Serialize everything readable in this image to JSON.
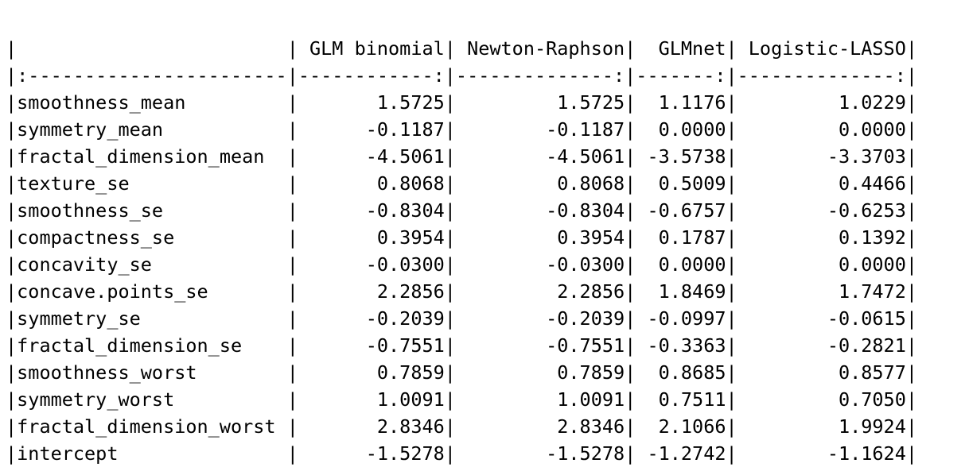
{
  "table": {
    "header": "|                        | GLM binomial| Newton-Raphson|  GLMnet| Logistic-LASSO|",
    "separator": "|:-----------------------|------------:|--------------:|-------:|--------------:|",
    "rows": [
      "|smoothness_mean         |       1.5725|         1.5725|  1.1176|         1.0229|",
      "|symmetry_mean           |      -0.1187|        -0.1187|  0.0000|         0.0000|",
      "|fractal_dimension_mean  |      -4.5061|        -4.5061| -3.5738|        -3.3703|",
      "|texture_se              |       0.8068|         0.8068|  0.5009|         0.4466|",
      "|smoothness_se           |      -0.8304|        -0.8304| -0.6757|        -0.6253|",
      "|compactness_se          |       0.3954|         0.3954|  0.1787|         0.1392|",
      "|concavity_se            |      -0.0300|        -0.0300|  0.0000|         0.0000|",
      "|concave.points_se       |       2.2856|         2.2856|  1.8469|         1.7472|",
      "|symmetry_se             |      -0.2039|        -0.2039| -0.0997|        -0.0615|",
      "|fractal_dimension_se    |      -0.7551|        -0.7551| -0.3363|        -0.2821|",
      "|smoothness_worst        |       0.7859|         0.7859|  0.8685|         0.8577|",
      "|symmetry_worst          |       1.0091|         1.0091|  0.7511|         0.7050|",
      "|fractal_dimension_worst |       2.8346|         2.8346|  2.1066|         1.9924|",
      "|intercept               |      -1.5278|        -1.5278| -1.2742|        -1.1624|"
    ]
  }
}
